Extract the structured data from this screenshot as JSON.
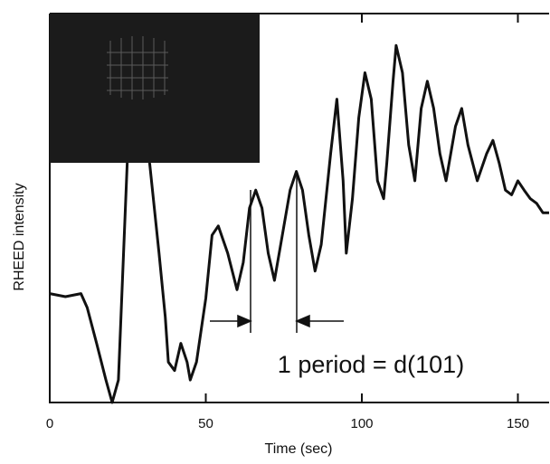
{
  "chart_data": {
    "type": "line",
    "xlabel": "Time (sec)",
    "ylabel": "RHEED intensity",
    "annotation": "1 period = d(101)",
    "xlim": [
      0,
      160
    ],
    "xticks": [
      0,
      50,
      100,
      150
    ],
    "ylim": [
      0,
      5
    ],
    "color": "#111111",
    "x": [
      0,
      5,
      10,
      12,
      15,
      18,
      20,
      22,
      24,
      26,
      29,
      32,
      35,
      37,
      38,
      40,
      42,
      44,
      45,
      47,
      50,
      52,
      54,
      57,
      60,
      62,
      64,
      66,
      68,
      70,
      72,
      74,
      77,
      79,
      81,
      83,
      85,
      87,
      90,
      92,
      94,
      95,
      97,
      99,
      101,
      103,
      105,
      107,
      108,
      110,
      111,
      113,
      115,
      117,
      119,
      121,
      123,
      125,
      127,
      130,
      132,
      134,
      137,
      140,
      142,
      144,
      146,
      148,
      150,
      152,
      154,
      156,
      158,
      160
    ],
    "values": [
      1.4,
      1.36,
      1.4,
      1.22,
      0.76,
      0.29,
      0,
      0.29,
      2.27,
      4.24,
      4.9,
      3.08,
      1.92,
      1.1,
      0.52,
      0.41,
      0.76,
      0.52,
      0.29,
      0.52,
      1.34,
      2.15,
      2.27,
      1.92,
      1.45,
      1.8,
      2.5,
      2.73,
      2.5,
      1.92,
      1.57,
      2.03,
      2.73,
      2.97,
      2.73,
      2.15,
      1.69,
      2.03,
      3.2,
      3.9,
      2.85,
      1.92,
      2.62,
      3.66,
      4.24,
      3.9,
      2.85,
      2.62,
      3.08,
      4.13,
      4.59,
      4.24,
      3.31,
      2.85,
      3.78,
      4.13,
      3.78,
      3.2,
      2.85,
      3.55,
      3.78,
      3.31,
      2.85,
      3.2,
      3.37,
      3.08,
      2.73,
      2.67,
      2.85,
      2.73,
      2.62,
      2.56,
      2.44,
      2.44
    ]
  }
}
